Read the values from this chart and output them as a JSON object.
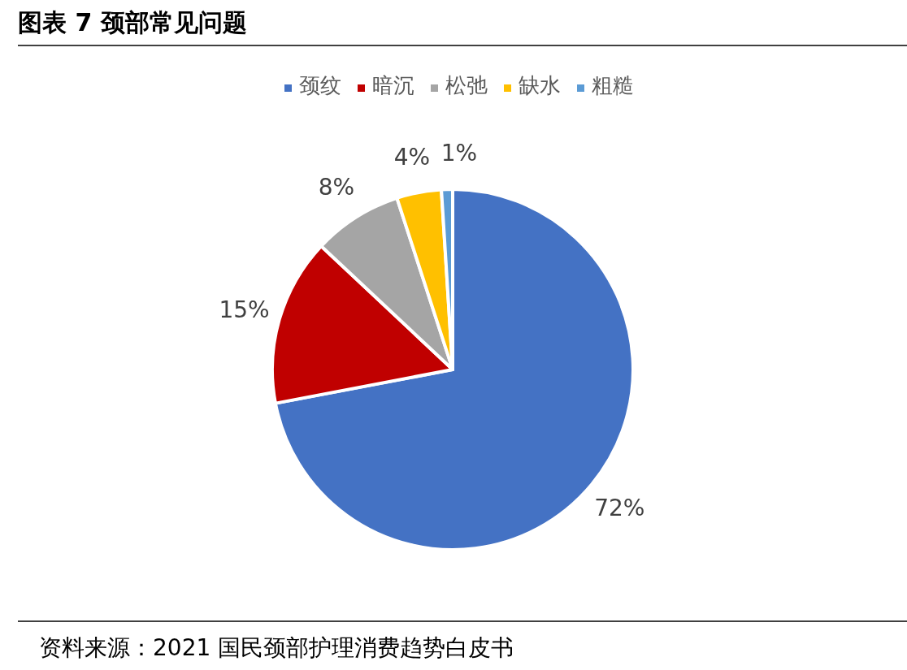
{
  "chart_data": {
    "type": "pie",
    "title": "图表 7 颈部常见问题",
    "categories": [
      "颈纹",
      "暗沉",
      "松弛",
      "缺水",
      "粗糙"
    ],
    "values": [
      72,
      15,
      8,
      4,
      1
    ],
    "colors": [
      "#4472c4",
      "#c00000",
      "#a5a5a5",
      "#ffc000",
      "#5b9bd5"
    ],
    "value_labels": [
      "72%",
      "15%",
      "8%",
      "4%",
      "1%"
    ],
    "legend": "top",
    "annotations": [
      "资料来源：2021 国民颈部护理消费趋势白皮书"
    ]
  }
}
